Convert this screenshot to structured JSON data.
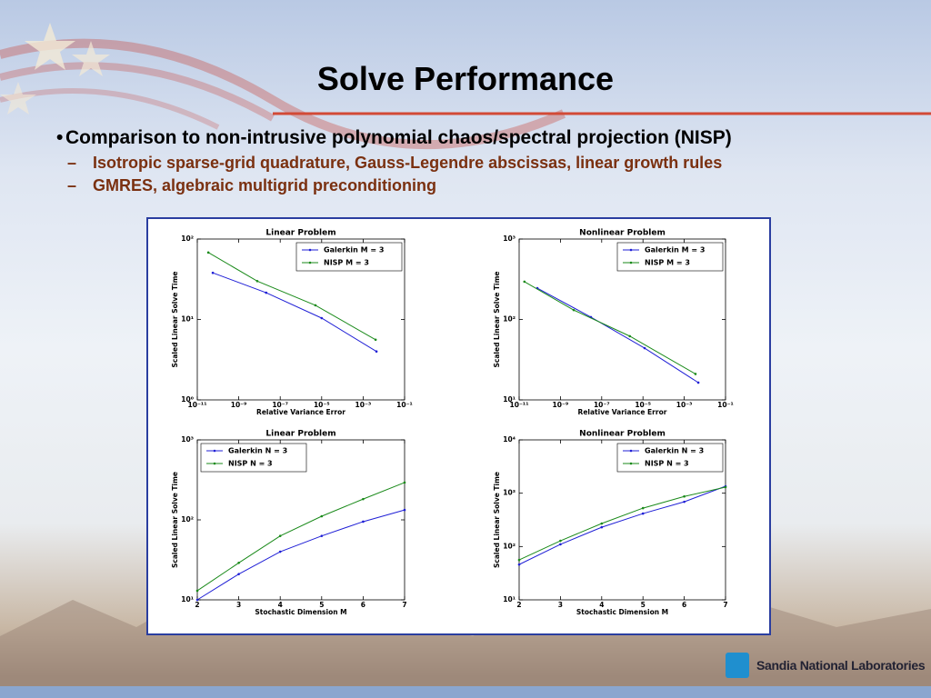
{
  "slide": {
    "title": "Solve Performance",
    "bullets": [
      {
        "text": "Comparison to non-intrusive polynomial chaos/spectral projection (NISP)",
        "subbullets": [
          "Isotropic sparse-grid quadrature, Gauss-Legendre abscissas, linear growth rules",
          "GMRES, algebraic multigrid preconditioning"
        ]
      }
    ],
    "logo": "Sandia National Laboratories"
  },
  "chart_data": [
    {
      "type": "line",
      "title": "Linear Problem",
      "x_label": "Relative Variance Error",
      "y_label": "Scaled Linear Solve Time",
      "xscale": "log",
      "yscale": "log",
      "legend": "upper right",
      "xlim": [
        1e-11,
        0.1
      ],
      "ylim": [
        1,
        100
      ],
      "xticks": [
        {
          "value": 1e-11,
          "label": "10⁻¹¹"
        },
        {
          "value": 1e-09,
          "label": "10⁻⁹"
        },
        {
          "value": 1e-07,
          "label": "10⁻⁷"
        },
        {
          "value": 1e-05,
          "label": "10⁻⁵"
        },
        {
          "value": 0.001,
          "label": "10⁻³"
        },
        {
          "value": 0.1,
          "label": "10⁻¹"
        }
      ],
      "yticks": [
        {
          "value": 1,
          "label": "10⁰"
        },
        {
          "value": 10,
          "label": "10¹"
        },
        {
          "value": 100,
          "label": "10²"
        }
      ],
      "series": [
        {
          "name": "Galerkin M = 3",
          "color": "#1f1fd6",
          "x": [
            5.6e-11,
            2.1e-08,
            1e-05,
            0.0044
          ],
          "values": [
            38,
            21.5,
            10.4,
            4.0
          ]
        },
        {
          "name": "NISP M = 3",
          "color": "#1a8a1a",
          "x": [
            3.4e-11,
            7.8e-09,
            5e-06,
            0.004
          ],
          "values": [
            68,
            30,
            15,
            5.6
          ]
        }
      ]
    },
    {
      "type": "line",
      "title": "Nonlinear Problem",
      "x_label": "Relative Variance Error",
      "y_label": "Scaled Linear Solve Time",
      "xscale": "log",
      "yscale": "log",
      "legend": "upper right",
      "xlim": [
        1e-11,
        0.1
      ],
      "ylim": [
        10,
        1000
      ],
      "xticks": [
        {
          "value": 1e-11,
          "label": "10⁻¹¹"
        },
        {
          "value": 1e-09,
          "label": "10⁻⁹"
        },
        {
          "value": 1e-07,
          "label": "10⁻⁷"
        },
        {
          "value": 1e-05,
          "label": "10⁻⁵"
        },
        {
          "value": 0.001,
          "label": "10⁻³"
        },
        {
          "value": 0.1,
          "label": "10⁻¹"
        }
      ],
      "yticks": [
        {
          "value": 10,
          "label": "10¹"
        },
        {
          "value": 100,
          "label": "10²"
        },
        {
          "value": 1000,
          "label": "10³"
        }
      ],
      "series": [
        {
          "name": "Galerkin M = 3",
          "color": "#1f1fd6",
          "x": [
            7.6e-11,
            3e-08,
            1.2e-05,
            0.0048
          ],
          "values": [
            245,
            107,
            44,
            16.4
          ]
        },
        {
          "name": "NISP M = 3",
          "color": "#1a8a1a",
          "x": [
            1.8e-11,
            4.4e-09,
            2.3e-06,
            0.0035
          ],
          "values": [
            295,
            131,
            62,
            21
          ]
        }
      ]
    },
    {
      "type": "line",
      "title": "Linear Problem",
      "x_label": "Stochastic Dimension M",
      "y_label": "Scaled Linear Solve Time",
      "xscale": "linear",
      "yscale": "log",
      "legend": "upper left",
      "x": [
        2,
        3,
        4,
        5,
        6,
        7
      ],
      "xlim": [
        2,
        7
      ],
      "ylim": [
        10,
        1000
      ],
      "xticks": [
        2,
        3,
        4,
        5,
        6,
        7
      ],
      "yticks": [
        {
          "value": 10,
          "label": "10¹"
        },
        {
          "value": 100,
          "label": "10²"
        },
        {
          "value": 1000,
          "label": "10³"
        }
      ],
      "series": [
        {
          "name": "Galerkin N = 3",
          "color": "#1f1fd6",
          "values": [
            10,
            21,
            40,
            63,
            95,
            133
          ]
        },
        {
          "name": "NISP N = 3",
          "color": "#1a8a1a",
          "values": [
            13,
            29,
            63,
            111,
            182,
            293
          ]
        }
      ]
    },
    {
      "type": "line",
      "title": "Nonlinear Problem",
      "x_label": "Stochastic Dimension M",
      "y_label": "Scaled Linear Solve Time",
      "xscale": "linear",
      "yscale": "log",
      "legend": "upper right",
      "x": [
        2,
        3,
        4,
        5,
        6,
        7
      ],
      "xlim": [
        2,
        7
      ],
      "ylim": [
        10,
        10000
      ],
      "xticks": [
        2,
        3,
        4,
        5,
        6,
        7
      ],
      "yticks": [
        {
          "value": 10,
          "label": "10¹"
        },
        {
          "value": 100,
          "label": "10²"
        },
        {
          "value": 1000,
          "label": "10³"
        },
        {
          "value": 10000,
          "label": "10⁴"
        }
      ],
      "series": [
        {
          "name": "Galerkin N = 3",
          "color": "#1f1fd6",
          "values": [
            46,
            110,
            230,
            415,
            690,
            1350
          ]
        },
        {
          "name": "NISP N = 3",
          "color": "#1a8a1a",
          "values": [
            56,
            128,
            270,
            525,
            870,
            1300
          ]
        }
      ]
    }
  ]
}
